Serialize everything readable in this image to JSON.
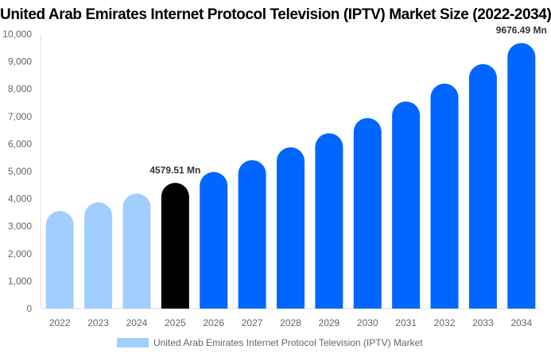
{
  "chart_data": {
    "type": "bar",
    "title": "United Arab Emirates Internet Protocol Television (IPTV) Market Size (2022-2034)",
    "categories": [
      "2022",
      "2023",
      "2024",
      "2025",
      "2026",
      "2027",
      "2028",
      "2029",
      "2030",
      "2031",
      "2032",
      "2033",
      "2034"
    ],
    "series": [
      {
        "name": "United Arab Emirates Internet Protocol Television (IPTV) Market",
        "values": [
          3555,
          3873,
          4191,
          4579.51,
          4977,
          5409,
          5878,
          6388,
          6942,
          7544,
          8198,
          8909,
          9676.49
        ]
      }
    ],
    "data_labels": [
      {
        "category": "2025",
        "text": "4579.51 Mn"
      },
      {
        "category": "2034",
        "text": "9676.49 Mn"
      }
    ],
    "ylim": [
      0,
      10000
    ],
    "yticks": [
      "0",
      "1,000",
      "2,000",
      "3,000",
      "4,000",
      "5,000",
      "6,000",
      "7,000",
      "8,000",
      "9,000",
      "10,000"
    ],
    "xlabel": "",
    "ylabel": "",
    "grid": false,
    "legend_position": "bottom",
    "colors": {
      "historical": "#a0cfff",
      "current": "#000000",
      "forecast": "#0066ff",
      "legend": "#a0cfff"
    }
  }
}
